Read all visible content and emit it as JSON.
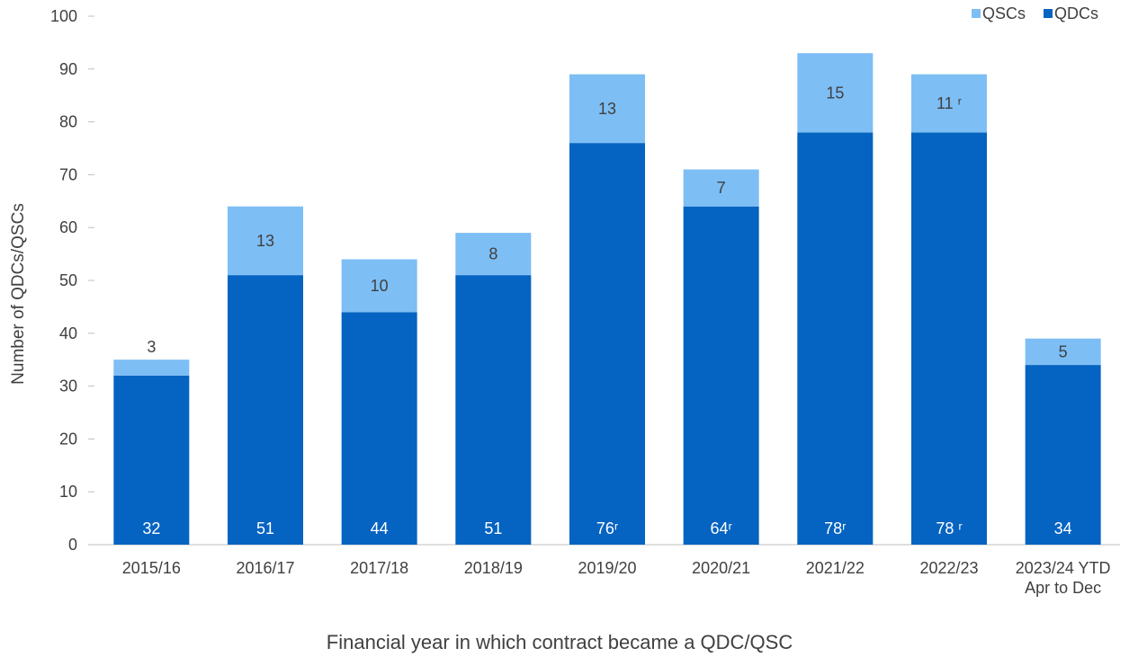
{
  "chart_data": {
    "type": "bar",
    "stacked": true,
    "categories": [
      "2015/16",
      "2016/17",
      "2017/18",
      "2018/19",
      "2019/20",
      "2020/21",
      "2021/22",
      "2022/23",
      "2023/24 YTD\nApr to Dec"
    ],
    "series": [
      {
        "name": "QDCs",
        "color": "#0563C1",
        "values": [
          32,
          51,
          44,
          51,
          76,
          64,
          78,
          78,
          34
        ],
        "labels": [
          "32",
          "51",
          "44",
          "51",
          "76ʳ",
          "64ʳ",
          "78ʳ",
          "78 ʳ",
          "34"
        ]
      },
      {
        "name": "QSCs",
        "color": "#7DBEF5",
        "values": [
          3,
          13,
          10,
          8,
          13,
          7,
          15,
          11,
          5
        ],
        "labels": [
          "3",
          "13",
          "10",
          "8",
          "13",
          "7",
          "15",
          "11 ʳ",
          "5"
        ]
      }
    ],
    "title": "",
    "xlabel": "Financial year in which contract became a QDC/QSC",
    "ylabel": "Number of QDCs/QSCs",
    "ylim": [
      0,
      100
    ],
    "yticks": [
      0,
      10,
      20,
      30,
      40,
      50,
      60,
      70,
      80,
      90,
      100
    ],
    "grid": false,
    "legend": {
      "placement": "top-right",
      "entries": [
        "QSCs",
        "QDCs"
      ]
    }
  }
}
